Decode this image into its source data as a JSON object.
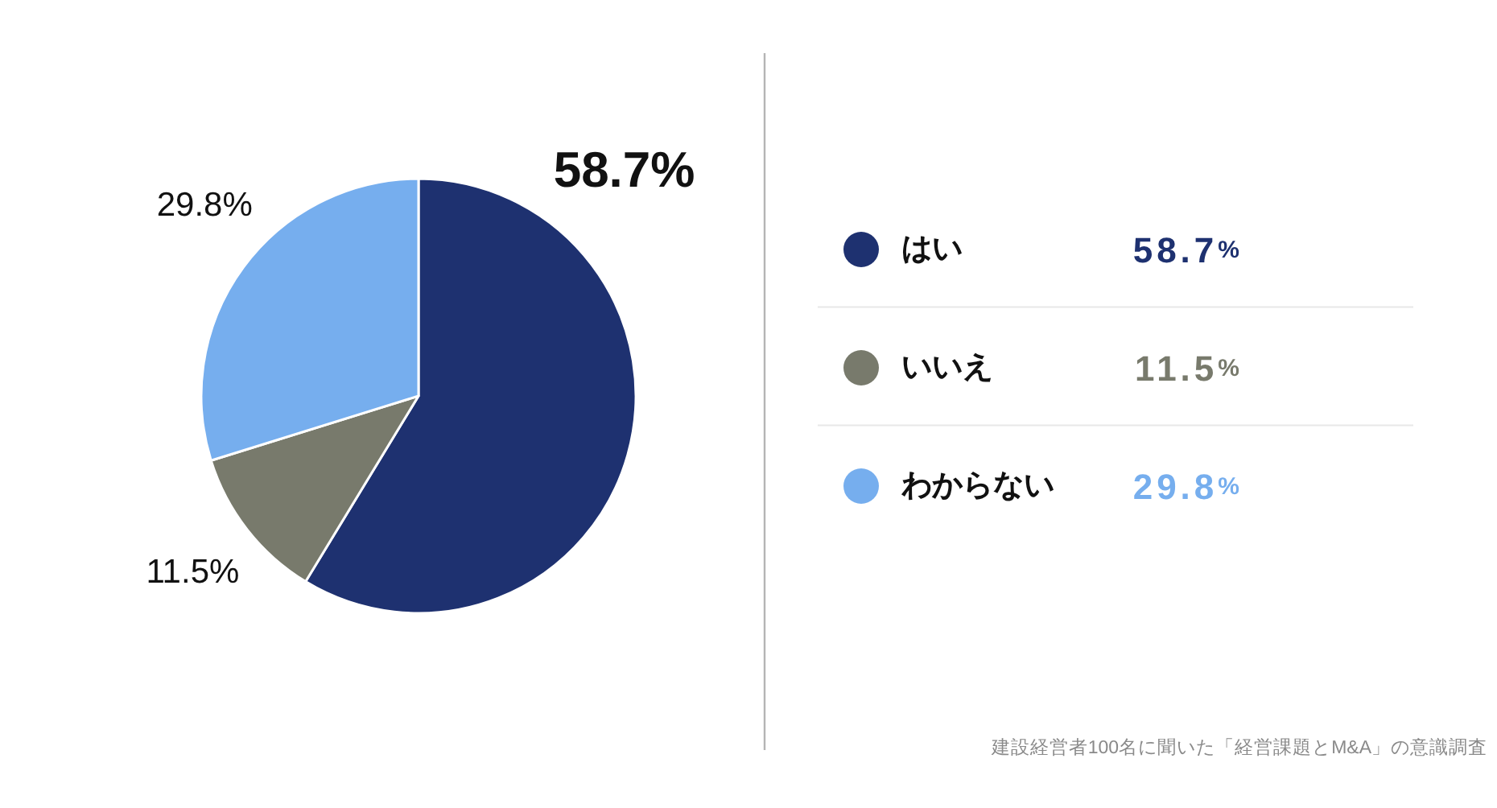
{
  "chart_data": {
    "type": "pie",
    "categories": [
      "はい",
      "いいえ",
      "わからない"
    ],
    "values": [
      58.7,
      11.5,
      29.8
    ],
    "colors": [
      "#1e3170",
      "#787a6c",
      "#76aeee"
    ],
    "value_labels": [
      "58.7%",
      "11.5%",
      "29.8%"
    ],
    "legend": "right",
    "annotations": [
      "建設経営者100名に聞いた「経営課題とM&A」の意識調査"
    ]
  }
}
